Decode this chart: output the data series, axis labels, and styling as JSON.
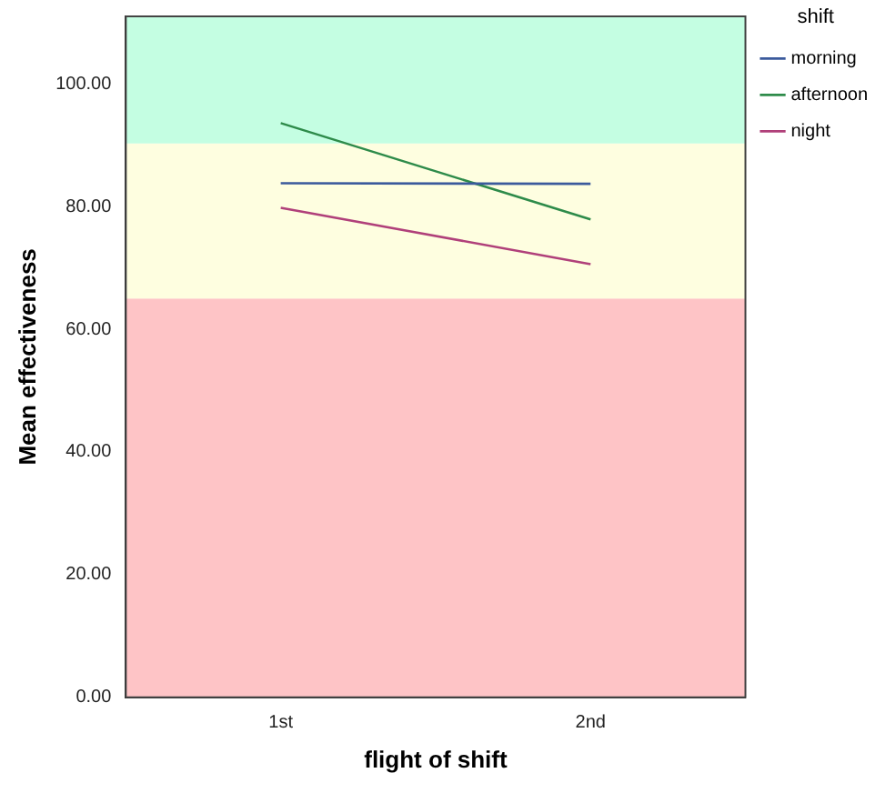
{
  "chart_data": {
    "type": "line",
    "xlabel": "flight of shift",
    "ylabel": "Mean effectiveness",
    "legend_title": "shift",
    "categories": [
      "1st",
      "2nd"
    ],
    "series": [
      {
        "name": "morning",
        "color": "#3b5a9c",
        "values": [
          83.8,
          83.7
        ]
      },
      {
        "name": "afternoon",
        "color": "#2e8b4a",
        "values": [
          93.6,
          77.9
        ]
      },
      {
        "name": "night",
        "color": "#b0407a",
        "values": [
          79.8,
          70.6
        ]
      }
    ],
    "ylim": [
      0,
      111
    ],
    "yticks": [
      {
        "value": 0,
        "label": "0.00"
      },
      {
        "value": 20,
        "label": "20.00"
      },
      {
        "value": 40,
        "label": "40.00"
      },
      {
        "value": 60,
        "label": "60.00"
      },
      {
        "value": 80,
        "label": "80.00"
      },
      {
        "value": 100,
        "label": "100.00"
      }
    ],
    "bands": [
      {
        "axis": "y",
        "from": 0,
        "to": 65,
        "color": "#fec4c6"
      },
      {
        "axis": "y",
        "from": 65,
        "to": 90.3,
        "color": "#fefee0"
      },
      {
        "axis": "y",
        "from": 90.3,
        "to": 111,
        "color": "#c4fee2"
      }
    ],
    "grid": false,
    "legend": "top right",
    "marker": "none",
    "line_style": "solid"
  }
}
